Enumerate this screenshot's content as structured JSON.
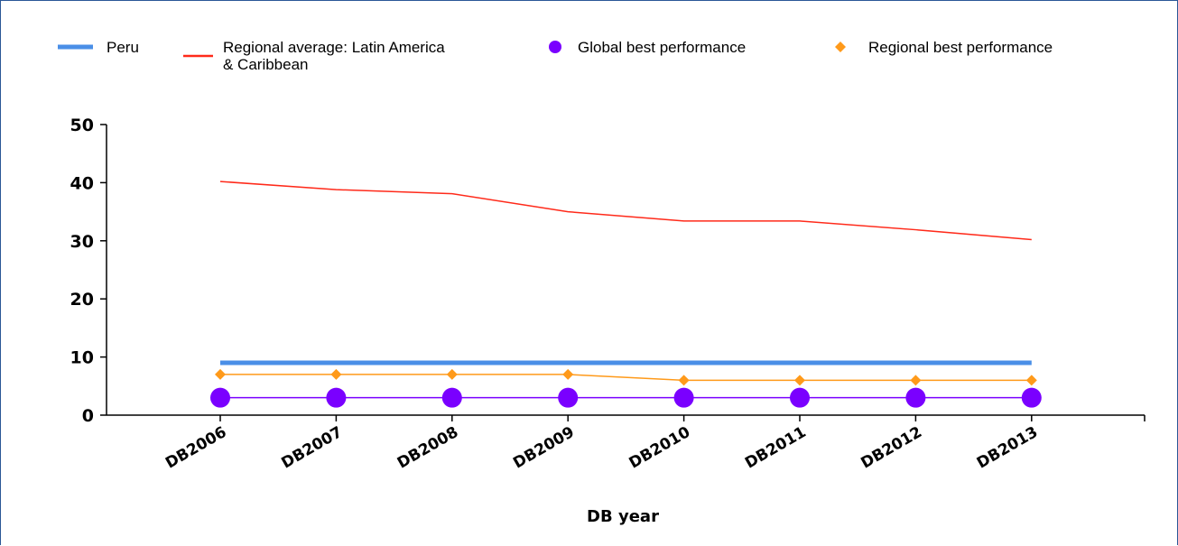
{
  "chart_data": {
    "type": "line",
    "title": "",
    "xlabel": "DB year",
    "ylabel": "",
    "categories": [
      "DB2006",
      "DB2007",
      "DB2008",
      "DB2009",
      "DB2010",
      "DB2011",
      "DB2012",
      "DB2013"
    ],
    "ylim": [
      0,
      50
    ],
    "yticks": [
      0,
      10,
      20,
      30,
      40,
      50
    ],
    "grid": false,
    "legend_position": "top",
    "series": [
      {
        "name": "Peru",
        "color": "#4a8fe7",
        "marker": "none",
        "values": [
          9,
          9,
          9,
          9,
          9,
          9,
          9,
          9
        ]
      },
      {
        "name": "Regional average: Latin America & Caribbean",
        "color": "#ff2a1a",
        "marker": "none",
        "values": [
          40.2,
          38.8,
          38.1,
          35.0,
          33.4,
          33.4,
          31.9,
          30.2
        ]
      },
      {
        "name": "Global best performance",
        "color": "#7a00ff",
        "marker": "circle",
        "values": [
          3,
          3,
          3,
          3,
          3,
          3,
          3,
          3
        ]
      },
      {
        "name": "Regional best performance",
        "color": "#ff9a1a",
        "marker": "diamond",
        "values": [
          7,
          7,
          7,
          7,
          6,
          6,
          6,
          6
        ]
      }
    ]
  }
}
